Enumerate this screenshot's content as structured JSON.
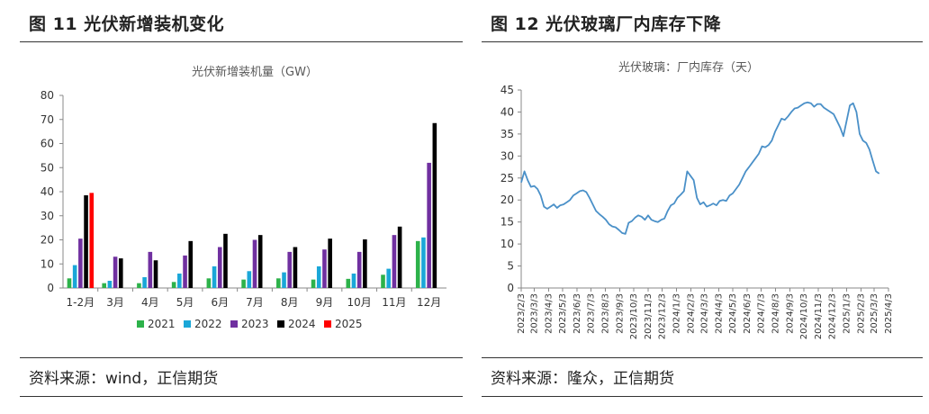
{
  "left": {
    "figure_title": "图 11  光伏新增装机变化",
    "source": "资料来源：wind，正信期货"
  },
  "right": {
    "figure_title": "图 12   光伏玻璃厂内库存下降",
    "source": "资料来源：隆众，正信期货"
  },
  "chart_data": [
    {
      "type": "bar",
      "title": "光伏新增装机量（GW）",
      "categories": [
        "1-2月",
        "3月",
        "4月",
        "5月",
        "6月",
        "7月",
        "8月",
        "9月",
        "10月",
        "11月",
        "12月"
      ],
      "ylim": [
        0,
        80
      ],
      "yticks": [
        0,
        10,
        20,
        30,
        40,
        50,
        60,
        70,
        80
      ],
      "legend_position": "bottom",
      "series": [
        {
          "name": "2021",
          "color": "#2db24a",
          "values": [
            4,
            2,
            2,
            2.5,
            4,
            3.5,
            4,
            3.5,
            3.8,
            5.5,
            19.5
          ]
        },
        {
          "name": "2022",
          "color": "#1aa7d8",
          "values": [
            9.5,
            3,
            4.5,
            6,
            9,
            7,
            6.5,
            9,
            6,
            8,
            21
          ]
        },
        {
          "name": "2023",
          "color": "#7030a0",
          "values": [
            20.5,
            13,
            15,
            13.5,
            17,
            20,
            15,
            16,
            15,
            22,
            52
          ]
        },
        {
          "name": "2024",
          "color": "#000000",
          "values": [
            38.5,
            12.3,
            11.5,
            19.5,
            22.5,
            22,
            17,
            20.5,
            20.2,
            25.5,
            68.5
          ]
        },
        {
          "name": "2025",
          "color": "#ff0000",
          "values": [
            39.5,
            null,
            null,
            null,
            null,
            null,
            null,
            null,
            null,
            null,
            null
          ]
        }
      ]
    },
    {
      "type": "line",
      "title": "光伏玻璃：厂内库存（天）",
      "ylim": [
        0,
        45
      ],
      "yticks": [
        0,
        5,
        10,
        15,
        20,
        25,
        30,
        35,
        40,
        45
      ],
      "color": "#4a90c8",
      "xticks": [
        "2023/2/3",
        "2023/3/3",
        "2023/4/3",
        "2023/5/3",
        "2023/6/3",
        "2023/7/3",
        "2023/8/3",
        "2023/9/3",
        "2023/10/3",
        "2023/11/3",
        "2023/12/3",
        "2024/1/3",
        "2024/2/3",
        "2024/3/3",
        "2024/4/3",
        "2024/5/3",
        "2024/6/3",
        "2024/7/3",
        "2024/8/3",
        "2024/9/3",
        "2024/10/3",
        "2024/11/3",
        "2024/12/3",
        "2025/1/3",
        "2025/2/3",
        "2025/3/3",
        "2025/4/3"
      ],
      "x_start": "2023/2/3",
      "x_end": "2025/4/3",
      "points": [
        [
          "2023/2/3",
          24
        ],
        [
          "2023/2/10",
          26.5
        ],
        [
          "2023/2/17",
          24.5
        ],
        [
          "2023/2/24",
          23
        ],
        [
          "2023/3/3",
          23.2
        ],
        [
          "2023/3/10",
          22.5
        ],
        [
          "2023/3/17",
          21
        ],
        [
          "2023/3/24",
          18.5
        ],
        [
          "2023/3/31",
          18
        ],
        [
          "2023/4/7",
          18.5
        ],
        [
          "2023/4/14",
          19
        ],
        [
          "2023/4/21",
          18.2
        ],
        [
          "2023/4/28",
          18.8
        ],
        [
          "2023/5/5",
          19
        ],
        [
          "2023/5/12",
          19.5
        ],
        [
          "2023/5/19",
          20
        ],
        [
          "2023/5/26",
          21
        ],
        [
          "2023/6/2",
          21.5
        ],
        [
          "2023/6/9",
          22
        ],
        [
          "2023/6/16",
          22.2
        ],
        [
          "2023/6/23",
          21.8
        ],
        [
          "2023/6/30",
          20.5
        ],
        [
          "2023/7/7",
          19
        ],
        [
          "2023/7/14",
          17.5
        ],
        [
          "2023/7/21",
          16.8
        ],
        [
          "2023/7/28",
          16.2
        ],
        [
          "2023/8/4",
          15.5
        ],
        [
          "2023/8/11",
          14.5
        ],
        [
          "2023/8/18",
          14
        ],
        [
          "2023/8/25",
          13.8
        ],
        [
          "2023/9/1",
          13.2
        ],
        [
          "2023/9/8",
          12.5
        ],
        [
          "2023/9/15",
          12.3
        ],
        [
          "2023/9/22",
          14.8
        ],
        [
          "2023/9/29",
          15.2
        ],
        [
          "2023/10/6",
          16
        ],
        [
          "2023/10/13",
          16.5
        ],
        [
          "2023/10/20",
          16.2
        ],
        [
          "2023/10/27",
          15.5
        ],
        [
          "2023/11/3",
          16.5
        ],
        [
          "2023/11/10",
          15.5
        ],
        [
          "2023/11/17",
          15.2
        ],
        [
          "2023/11/24",
          15
        ],
        [
          "2023/12/1",
          15.5
        ],
        [
          "2023/12/8",
          15.8
        ],
        [
          "2023/12/15",
          17.5
        ],
        [
          "2023/12/22",
          18.8
        ],
        [
          "2023/12/29",
          19.2
        ],
        [
          "2024/1/5",
          20.5
        ],
        [
          "2024/1/12",
          21.2
        ],
        [
          "2024/1/19",
          22
        ],
        [
          "2024/1/26",
          26.5
        ],
        [
          "2024/2/2",
          25.5
        ],
        [
          "2024/2/9",
          24.5
        ],
        [
          "2024/2/16",
          20.5
        ],
        [
          "2024/2/23",
          19
        ],
        [
          "2024/3/1",
          19.5
        ],
        [
          "2024/3/8",
          18.5
        ],
        [
          "2024/3/15",
          18.8
        ],
        [
          "2024/3/22",
          19.2
        ],
        [
          "2024/3/29",
          18.8
        ],
        [
          "2024/4/5",
          19.8
        ],
        [
          "2024/4/12",
          20
        ],
        [
          "2024/4/19",
          19.8
        ],
        [
          "2024/4/26",
          21
        ],
        [
          "2024/5/3",
          21.5
        ],
        [
          "2024/5/10",
          22.5
        ],
        [
          "2024/5/17",
          23.5
        ],
        [
          "2024/5/24",
          25
        ],
        [
          "2024/5/31",
          26.5
        ],
        [
          "2024/6/7",
          27.5
        ],
        [
          "2024/6/14",
          28.5
        ],
        [
          "2024/6/21",
          29.5
        ],
        [
          "2024/6/28",
          30.5
        ],
        [
          "2024/7/5",
          32.2
        ],
        [
          "2024/7/12",
          32
        ],
        [
          "2024/7/19",
          32.5
        ],
        [
          "2024/7/26",
          33.5
        ],
        [
          "2024/8/2",
          35.5
        ],
        [
          "2024/8/9",
          37
        ],
        [
          "2024/8/16",
          38.5
        ],
        [
          "2024/8/23",
          38.2
        ],
        [
          "2024/8/30",
          39
        ],
        [
          "2024/9/6",
          40
        ],
        [
          "2024/9/13",
          40.8
        ],
        [
          "2024/9/20",
          41
        ],
        [
          "2024/9/27",
          41.5
        ],
        [
          "2024/10/4",
          42
        ],
        [
          "2024/10/11",
          42.2
        ],
        [
          "2024/10/18",
          42
        ],
        [
          "2024/10/25",
          41.2
        ],
        [
          "2024/11/1",
          41.8
        ],
        [
          "2024/11/8",
          41.8
        ],
        [
          "2024/11/15",
          41
        ],
        [
          "2024/11/22",
          40.5
        ],
        [
          "2024/11/29",
          40
        ],
        [
          "2024/12/6",
          39.5
        ],
        [
          "2024/12/13",
          38
        ],
        [
          "2024/12/20",
          36.5
        ],
        [
          "2024/12/27",
          34.5
        ],
        [
          "2025/1/3",
          38
        ],
        [
          "2025/1/10",
          41.5
        ],
        [
          "2025/1/17",
          42
        ],
        [
          "2025/1/24",
          40
        ],
        [
          "2025/1/31",
          35
        ],
        [
          "2025/2/7",
          33.5
        ],
        [
          "2025/2/14",
          33
        ],
        [
          "2025/2/21",
          31.5
        ],
        [
          "2025/2/28",
          29
        ],
        [
          "2025/3/7",
          26.5
        ],
        [
          "2025/3/14",
          26
        ]
      ]
    }
  ]
}
